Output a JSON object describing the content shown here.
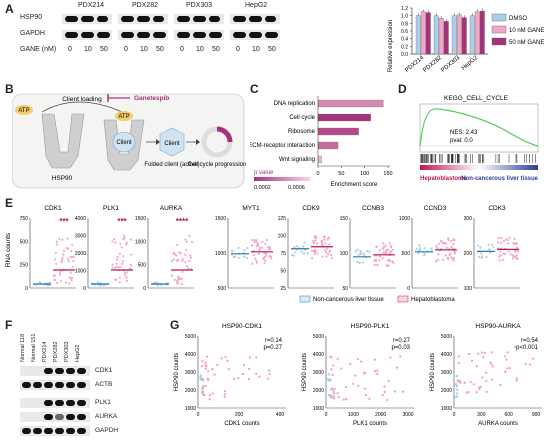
{
  "panels": {
    "a": "A",
    "b": "B",
    "c": "C",
    "d": "D",
    "e": "E",
    "f": "F",
    "g": "G"
  },
  "panelA": {
    "cell_lines": [
      "PDX214",
      "PDX282",
      "PDX303",
      "HepG2"
    ],
    "row_labels": [
      "HSP90",
      "GAPDH"
    ],
    "gane_label": "GANE (nM)",
    "doses": [
      "0",
      "10",
      "50"
    ],
    "y_axis_label": "Relative expression",
    "y_ticks": [
      "0.0",
      "0.2",
      "0.4",
      "0.6",
      "0.8",
      "1.0",
      "1.2"
    ],
    "legend": [
      "DMSO",
      "10 nM GANE",
      "50 nM GANE"
    ],
    "colors": {
      "dmso": "#a9d0e6",
      "gane10": "#f2a7c9",
      "gane50": "#a4347a"
    }
  },
  "panelB": {
    "atp": "ATP",
    "client_loading": "Client loading",
    "ganetespib": "Ganetespib",
    "client": "Client",
    "hsp90": "HSP90",
    "folded_client": "Folded client (active)",
    "cell_cycle": "Cell cycle progression"
  },
  "panelC": {
    "pathways": [
      "DNA replication",
      "Cell cycle",
      "Ribosome",
      "ECM-receptor interaction",
      "Wnt signaling"
    ],
    "x_label": "Enrichment score",
    "x_ticks": [
      "0",
      "50",
      "100",
      "150"
    ],
    "legend_title": "p value",
    "legend_ticks": [
      "0.0002",
      "0.0006"
    ]
  },
  "panelD": {
    "title": "KEGG_CELL_CYCLE",
    "nes": "NES: 2.43",
    "pval": "pval: 0.0",
    "left": "Hepatoblastoma",
    "right": "Non-cancerous liver tissue"
  },
  "panelE": {
    "y_label": "RNA counts",
    "legend": [
      "Non-cancerous liver tissue",
      "Hepatoblastoma"
    ],
    "plots": [
      {
        "gene": "CDK1",
        "ticks": [
          "0",
          "250",
          "500",
          "750"
        ],
        "sig": "***"
      },
      {
        "gene": "PLK1",
        "ticks": [
          "0",
          "1000",
          "2000",
          "3000",
          "4000"
        ],
        "sig": "***"
      },
      {
        "gene": "AURKA",
        "ticks": [
          "0",
          "500",
          "1000",
          "1500"
        ],
        "sig": "****"
      },
      {
        "gene": "MYT1",
        "ticks": [
          "500",
          "1000",
          "1500"
        ],
        "sig": ""
      },
      {
        "gene": "CDK9",
        "ticks": [
          "25",
          "50",
          "75",
          "100",
          "125"
        ],
        "sig": ""
      },
      {
        "gene": "CCNB3",
        "ticks": [
          "50",
          "100",
          "150"
        ],
        "sig": ""
      },
      {
        "gene": "CCND3",
        "ticks": [
          "0",
          "500",
          "1000"
        ],
        "sig": ""
      },
      {
        "gene": "CDK3",
        "ticks": [
          "100",
          "200",
          "300"
        ],
        "sig": ""
      }
    ]
  },
  "panelF": {
    "lanes": [
      "Normal 118",
      "Normal 151",
      "PDX214",
      "PDX282",
      "PDX303",
      "HepG2"
    ],
    "rows": [
      "CDK1",
      "ACTB",
      "PLK1",
      "AURKA",
      "GAPDH"
    ]
  },
  "panelG": {
    "y_label": "HSP90 counts",
    "plots": [
      {
        "title": "HSP90-CDK1",
        "r": "r=0.14",
        "p": "p=0.27",
        "x_label": "CDK1 counts",
        "x_ticks": [
          "0",
          "200",
          "400"
        ],
        "y_ticks": [
          "1000",
          "2000",
          "3000",
          "4000",
          "5000"
        ]
      },
      {
        "title": "HSP90-PLK1",
        "r": "r=0.27",
        "p": "p=0.03",
        "x_label": "PLK1 counts",
        "x_ticks": [
          "0",
          "1000",
          "2000",
          "3000"
        ],
        "y_ticks": [
          "1000",
          "2000",
          "3000",
          "4000",
          "5000"
        ]
      },
      {
        "title": "HSP90-AURKA",
        "r": "r=0.54",
        "p": "p<0.001",
        "x_label": "AURKA counts",
        "x_ticks": [
          "0",
          "300",
          "600",
          "900"
        ],
        "y_ticks": [
          "1000",
          "2000",
          "3000",
          "4000",
          "5000"
        ]
      }
    ]
  },
  "chart_data": [
    {
      "type": "bar",
      "categories": [
        "PDX214",
        "PDX282",
        "PDX303",
        "HepG2"
      ],
      "series": [
        {
          "name": "DMSO",
          "values": [
            1.0,
            1.0,
            1.0,
            1.0
          ]
        },
        {
          "name": "10 nM GANE",
          "values": [
            1.1,
            0.93,
            1.02,
            1.1
          ]
        },
        {
          "name": "50 nM GANE",
          "values": [
            1.08,
            0.85,
            0.95,
            1.12
          ]
        }
      ],
      "ylabel": "Relative expression",
      "ylim": [
        0,
        1.2
      ]
    },
    {
      "type": "bar",
      "categories": [
        "DNA replication",
        "Cell cycle",
        "Ribosome",
        "ECM-receptor interaction",
        "Wnt signaling"
      ],
      "values": [
        140,
        113,
        87,
        43,
        8
      ],
      "xlabel": "Enrichment score",
      "xlim": [
        0,
        150
      ]
    }
  ]
}
